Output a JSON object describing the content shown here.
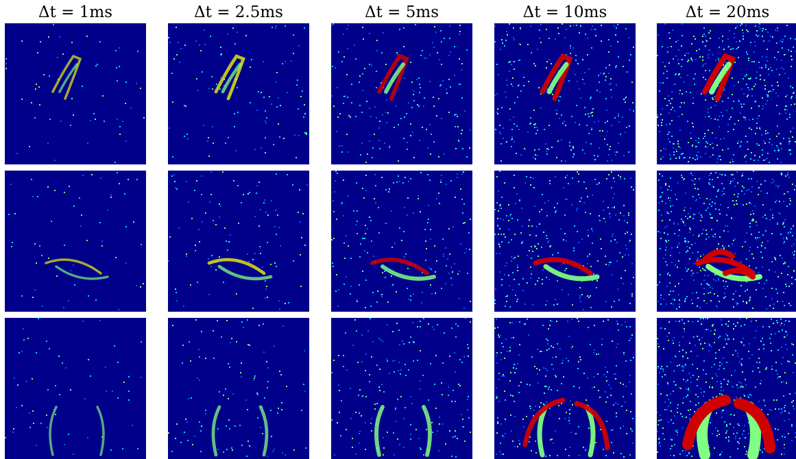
{
  "figure": {
    "columns": [
      {
        "label": "Δt = 1ms"
      },
      {
        "label": "Δt = 2.5ms"
      },
      {
        "label": "Δt = 5ms"
      },
      {
        "label": "Δt = 10ms"
      },
      {
        "label": "Δt = 20ms"
      }
    ],
    "rows": 3,
    "colormap": [
      "#00008b",
      "#0060ff",
      "#00e0ff",
      "#80ff80",
      "#ffff00",
      "#ff6000",
      "#d00000"
    ]
  }
}
